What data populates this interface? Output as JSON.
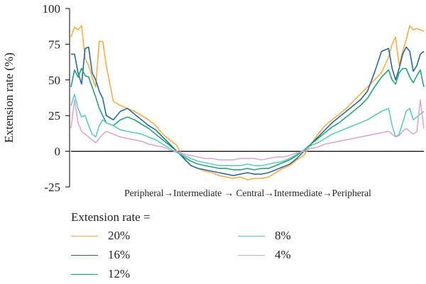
{
  "legend": {
    "title": "Extension rate =",
    "items": [
      {
        "label": "20%",
        "color": "#f2ab3c"
      },
      {
        "label": "16%",
        "color": "#1f5f9e"
      },
      {
        "label": "12%",
        "color": "#16a06a"
      },
      {
        "label": "8%",
        "color": "#58c7bd"
      },
      {
        "label": "4%",
        "color": "#dda2d2"
      }
    ]
  },
  "chart_data": {
    "type": "line",
    "xlabel": "Peripheral→Intermediate → Central→Intermediate→Peripheral",
    "ylabel": "Extension rate (%)",
    "ylim": [
      -25,
      100
    ],
    "yticks": [
      -25,
      0,
      25,
      50,
      75,
      100
    ],
    "xlim": [
      0,
      100
    ],
    "zero_line": true,
    "grid": false,
    "legend_position": "bottom",
    "series": [
      {
        "name": "20%",
        "color": "#f2ab3c",
        "x": [
          0,
          1,
          2,
          3,
          4,
          5,
          6,
          7,
          8,
          9,
          10,
          12,
          14,
          16,
          18,
          20,
          22,
          24,
          26,
          28,
          30,
          32,
          34,
          36,
          38,
          40,
          42,
          44,
          46,
          48,
          50,
          52,
          54,
          56,
          58,
          60,
          62,
          64,
          66,
          68,
          70,
          72,
          74,
          76,
          78,
          80,
          82,
          84,
          86,
          88,
          90,
          91,
          92,
          93,
          94,
          95,
          96,
          97,
          98,
          99,
          100
        ],
        "y": [
          80,
          87,
          85,
          88,
          65,
          60,
          52,
          45,
          77,
          77,
          60,
          35,
          32,
          30,
          28,
          25,
          22,
          18,
          12,
          8,
          4,
          -5,
          -10,
          -12,
          -14,
          -15,
          -17,
          -18,
          -19,
          -18,
          -20,
          -19,
          -19,
          -18,
          -15,
          -12,
          -10,
          -6,
          -3,
          5,
          12,
          18,
          22,
          26,
          30,
          35,
          40,
          45,
          50,
          55,
          66,
          75,
          80,
          60,
          70,
          78,
          88,
          85,
          86,
          85,
          84
        ]
      },
      {
        "name": "16%",
        "color": "#1f5f9e",
        "x": [
          0,
          1,
          2,
          3,
          4,
          5,
          6,
          7,
          8,
          9,
          10,
          12,
          14,
          16,
          18,
          20,
          22,
          24,
          26,
          28,
          30,
          32,
          34,
          36,
          38,
          40,
          42,
          44,
          46,
          48,
          50,
          52,
          54,
          56,
          58,
          60,
          62,
          64,
          66,
          68,
          70,
          72,
          74,
          76,
          78,
          80,
          82,
          84,
          86,
          88,
          90,
          91,
          92,
          93,
          94,
          95,
          96,
          97,
          98,
          99,
          100
        ],
        "y": [
          68,
          68,
          55,
          47,
          72,
          73,
          55,
          50,
          42,
          37,
          25,
          22,
          28,
          30,
          26,
          22,
          18,
          15,
          10,
          5,
          0,
          -5,
          -10,
          -12,
          -13,
          -14,
          -15,
          -16,
          -17,
          -16,
          -15,
          -16,
          -16,
          -15,
          -13,
          -11,
          -9,
          -5,
          0,
          5,
          10,
          15,
          20,
          24,
          28,
          32,
          36,
          42,
          55,
          70,
          72,
          58,
          50,
          58,
          68,
          73,
          70,
          56,
          60,
          68,
          70
        ]
      },
      {
        "name": "12%",
        "color": "#16a06a",
        "x": [
          0,
          1,
          2,
          3,
          4,
          5,
          6,
          7,
          8,
          9,
          10,
          12,
          14,
          16,
          18,
          20,
          22,
          24,
          26,
          28,
          30,
          32,
          34,
          36,
          38,
          40,
          42,
          44,
          46,
          48,
          50,
          52,
          54,
          56,
          58,
          60,
          62,
          64,
          66,
          68,
          70,
          72,
          74,
          76,
          78,
          80,
          82,
          84,
          86,
          88,
          90,
          91,
          92,
          93,
          94,
          95,
          96,
          97,
          98,
          99,
          100
        ],
        "y": [
          45,
          57,
          52,
          58,
          53,
          52,
          45,
          38,
          30,
          25,
          20,
          18,
          22,
          24,
          22,
          19,
          16,
          12,
          8,
          4,
          0,
          -4,
          -7,
          -9,
          -10,
          -11,
          -12,
          -12,
          -13,
          -13,
          -12,
          -13,
          -12,
          -12,
          -10,
          -8,
          -6,
          -3,
          1,
          5,
          9,
          13,
          17,
          20,
          24,
          28,
          32,
          37,
          45,
          52,
          57,
          50,
          47,
          55,
          58,
          58,
          52,
          48,
          53,
          57,
          45
        ]
      },
      {
        "name": "8%",
        "color": "#58c7bd",
        "x": [
          0,
          1,
          2,
          3,
          4,
          5,
          6,
          7,
          8,
          9,
          10,
          12,
          14,
          16,
          18,
          20,
          22,
          24,
          26,
          28,
          30,
          32,
          34,
          36,
          38,
          40,
          42,
          44,
          46,
          48,
          50,
          52,
          54,
          56,
          58,
          60,
          62,
          64,
          66,
          68,
          70,
          72,
          74,
          76,
          78,
          80,
          82,
          84,
          86,
          88,
          90,
          91,
          92,
          93,
          94,
          95,
          96,
          97,
          98,
          99,
          100
        ],
        "y": [
          32,
          40,
          30,
          24,
          25,
          18,
          12,
          10,
          18,
          22,
          20,
          18,
          15,
          14,
          13,
          12,
          10,
          8,
          5,
          2,
          -1,
          -3,
          -5,
          -7,
          -8,
          -9,
          -10,
          -10,
          -10,
          -10,
          -9,
          -10,
          -10,
          -9,
          -8,
          -7,
          -5,
          -2,
          1,
          4,
          6,
          9,
          12,
          14,
          16,
          18,
          20,
          22,
          25,
          28,
          30,
          18,
          10,
          12,
          20,
          28,
          30,
          22,
          24,
          26,
          28
        ]
      },
      {
        "name": "4%",
        "color": "#dda2d2",
        "x": [
          0,
          1,
          2,
          3,
          4,
          5,
          6,
          7,
          8,
          9,
          10,
          12,
          14,
          16,
          18,
          20,
          22,
          24,
          26,
          28,
          30,
          32,
          34,
          36,
          38,
          40,
          42,
          44,
          46,
          48,
          50,
          52,
          54,
          56,
          58,
          60,
          62,
          64,
          66,
          68,
          70,
          72,
          74,
          76,
          78,
          80,
          82,
          84,
          86,
          88,
          90,
          91,
          92,
          93,
          94,
          95,
          96,
          97,
          98,
          99,
          100
        ],
        "y": [
          16,
          36,
          20,
          14,
          12,
          10,
          8,
          6,
          9,
          12,
          14,
          12,
          10,
          9,
          8,
          7,
          5,
          4,
          3,
          1,
          0,
          -2,
          -3,
          -4,
          -5,
          -5,
          -6,
          -6,
          -6,
          -5,
          -5,
          -5,
          -6,
          -5,
          -4,
          -4,
          -3,
          -1,
          0,
          2,
          3,
          5,
          6,
          7,
          8,
          9,
          10,
          11,
          12,
          13,
          14,
          12,
          10,
          11,
          14,
          16,
          14,
          12,
          14,
          36,
          16
        ]
      }
    ]
  }
}
